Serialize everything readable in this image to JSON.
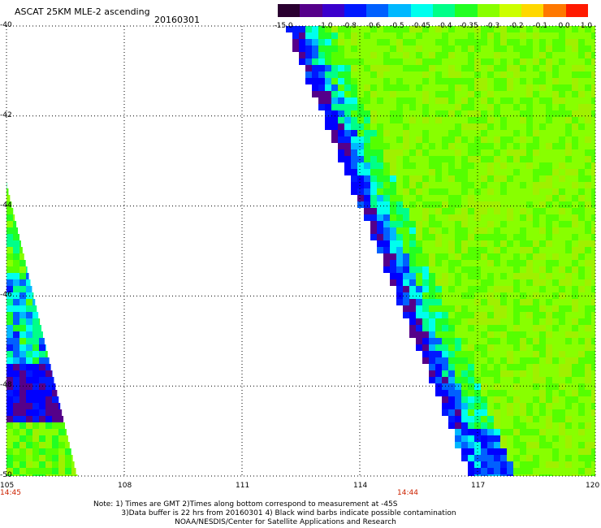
{
  "header": {
    "title": "ASCAT 25KM MLE-2 ascending",
    "date": "20160301"
  },
  "colorbar": {
    "labels": [
      "-15.0",
      "-1.0",
      "-0.8",
      "-0.6",
      "-0.5",
      "-0.45",
      "-0.4",
      "-0.35",
      "-0.3",
      "-0.2",
      "-0.1",
      "0.0",
      "1.0"
    ],
    "colors": [
      "#2a0030",
      "#55008a",
      "#3a00cc",
      "#0018ff",
      "#0060ff",
      "#00b8ff",
      "#00ffee",
      "#00ff88",
      "#22ff22",
      "#88ff00",
      "#ccff00",
      "#ffd800",
      "#ff7800",
      "#ff1a00"
    ]
  },
  "chart_data": {
    "type": "heatmap",
    "title": "ASCAT 25KM MLE-2 ascending",
    "x": [
      105,
      108,
      111,
      114,
      117,
      120
    ],
    "x_tick_labels": [
      "105",
      "108",
      "111",
      "114",
      "117",
      "120"
    ],
    "y": [
      -40,
      -42,
      -44,
      -46,
      -48,
      -50
    ],
    "y_tick_labels": [
      "-40",
      "-42",
      "-44",
      "-46",
      "-48",
      "-50"
    ],
    "xlim": [
      105,
      120
    ],
    "ylim": [
      -50,
      -40
    ],
    "grid": true,
    "time_labels": [
      {
        "text": "14:45",
        "lon": 105
      },
      {
        "text": "14:44",
        "lon": 114
      }
    ],
    "swaths": [
      {
        "name": "west",
        "lon_range": [
          105,
          106.8
        ],
        "lat_range": [
          -50,
          -43.5
        ],
        "dominant_values": "-0.6 to -0.35"
      },
      {
        "name": "east",
        "lon_range": [
          112.2,
          120
        ],
        "lat_range": [
          -50,
          -40
        ],
        "dominant_values": "-0.35 to -0.2"
      }
    ]
  },
  "footer": {
    "note1": "Note: 1) Times are GMT 2)Times along bottom correspond to measurement at -45S",
    "note2": "3)Data buffer is 22 hrs from 20160301 4) Black wind barbs indicate possible contamination",
    "note3": "NOAA/NESDIS/Center for Satellite Applications and Research"
  }
}
